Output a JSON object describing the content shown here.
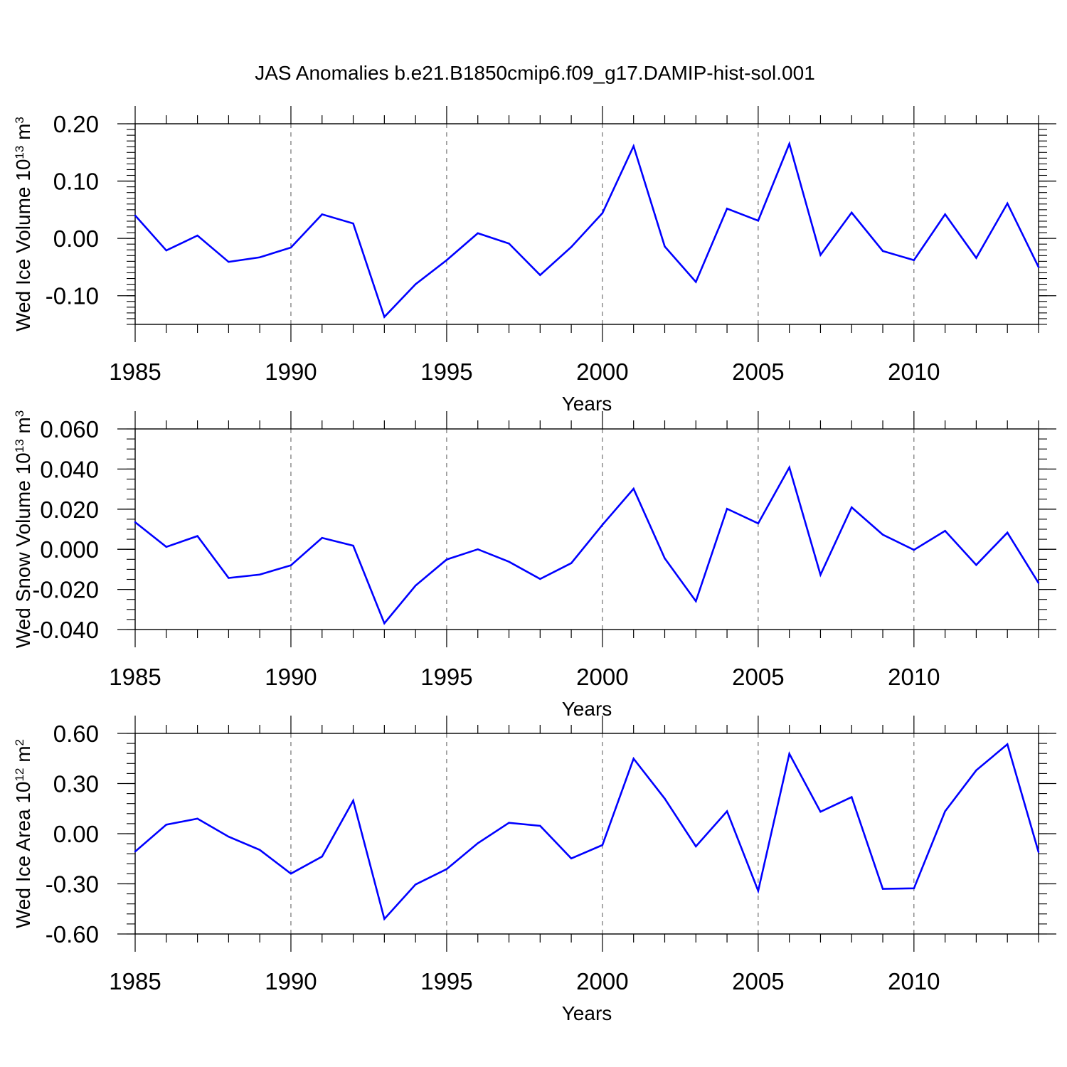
{
  "title": "JAS Anomalies b.e21.B1850cmip6.f09_g17.DAMIP-hist-sol.001",
  "series_color": "#0000ff",
  "chart_data": [
    {
      "type": "line",
      "ylabel": {
        "main": "Wed Ice Volume 10",
        "exp": "13",
        "unit": " m",
        "unit_exp": "3"
      },
      "xlabel": "Years",
      "xlim": [
        1985,
        2014
      ],
      "ylim": [
        -0.15,
        0.2
      ],
      "yticks": [
        0.2,
        0.1,
        0.0,
        -0.1
      ],
      "ytick_labels": [
        "0.20",
        "0.10",
        "0.00",
        "-0.10"
      ],
      "xticks": [
        1985,
        1990,
        1995,
        2000,
        2005,
        2010
      ],
      "xtick_labels": [
        "1985",
        "1990",
        "1995",
        "2000",
        "2005",
        "2010"
      ],
      "x": [
        1985,
        1986,
        1987,
        1988,
        1989,
        1990,
        1991,
        1992,
        1993,
        1994,
        1995,
        1996,
        1997,
        1998,
        1999,
        2000,
        2001,
        2002,
        2003,
        2004,
        2005,
        2006,
        2007,
        2008,
        2009,
        2010,
        2011,
        2012,
        2013,
        2014
      ],
      "values": [
        0.04,
        -0.021,
        0.005,
        -0.041,
        -0.033,
        -0.016,
        0.042,
        0.026,
        -0.137,
        -0.08,
        -0.038,
        0.009,
        -0.009,
        -0.064,
        -0.015,
        0.044,
        0.161,
        -0.014,
        -0.076,
        0.052,
        0.031,
        0.165,
        -0.029,
        0.045,
        -0.022,
        -0.038,
        0.042,
        -0.034,
        0.061,
        -0.05
      ]
    },
    {
      "type": "line",
      "ylabel": {
        "main": "Wed Snow Volume 10",
        "exp": "13",
        "unit": " m",
        "unit_exp": "3"
      },
      "xlabel": "Years",
      "xlim": [
        1985,
        2014
      ],
      "ylim": [
        -0.04,
        0.06
      ],
      "yticks": [
        0.06,
        0.04,
        0.02,
        0.0,
        -0.02,
        -0.04
      ],
      "ytick_labels": [
        "0.060",
        "0.040",
        "0.020",
        "0.000",
        "-0.020",
        "-0.040"
      ],
      "xticks": [
        1985,
        1990,
        1995,
        2000,
        2005,
        2010
      ],
      "xtick_labels": [
        "1985",
        "1990",
        "1995",
        "2000",
        "2005",
        "2010"
      ],
      "x": [
        1985,
        1986,
        1987,
        1988,
        1989,
        1990,
        1991,
        1992,
        1993,
        1994,
        1995,
        1996,
        1997,
        1998,
        1999,
        2000,
        2001,
        2002,
        2003,
        2004,
        2005,
        2006,
        2007,
        2008,
        2009,
        2010,
        2011,
        2012,
        2013,
        2014
      ],
      "values": [
        0.0135,
        0.0012,
        0.0066,
        -0.0143,
        -0.0126,
        -0.008,
        0.0057,
        0.0018,
        -0.0369,
        -0.0181,
        -0.0051,
        0.0,
        -0.0062,
        -0.0148,
        -0.0069,
        0.0122,
        0.0302,
        -0.0045,
        -0.0259,
        0.0202,
        0.0129,
        0.0408,
        -0.0127,
        0.0209,
        0.0073,
        -0.0003,
        0.0092,
        -0.0078,
        0.0083,
        -0.0168
      ]
    },
    {
      "type": "line",
      "ylabel": {
        "main": "Wed Ice Area 10",
        "exp": "12",
        "unit": " m",
        "unit_exp": "2"
      },
      "xlabel": "Years",
      "xlim": [
        1985,
        2014
      ],
      "ylim": [
        -0.6,
        0.6
      ],
      "yticks": [
        0.6,
        0.3,
        0.0,
        -0.3,
        -0.6
      ],
      "ytick_labels": [
        "0.60",
        "0.30",
        "0.00",
        "-0.30",
        "-0.60"
      ],
      "xticks": [
        1985,
        1990,
        1995,
        2000,
        2005,
        2010
      ],
      "xtick_labels": [
        "1985",
        "1990",
        "1995",
        "2000",
        "2005",
        "2010"
      ],
      "x": [
        1985,
        1986,
        1987,
        1988,
        1989,
        1990,
        1991,
        1992,
        1993,
        1994,
        1995,
        1996,
        1997,
        1998,
        1999,
        2000,
        2001,
        2002,
        2003,
        2004,
        2005,
        2006,
        2007,
        2008,
        2009,
        2010,
        2011,
        2012,
        2013,
        2014
      ],
      "values": [
        -0.107,
        0.054,
        0.09,
        -0.018,
        -0.097,
        -0.239,
        -0.137,
        0.198,
        -0.51,
        -0.304,
        -0.212,
        -0.057,
        0.065,
        0.047,
        -0.148,
        -0.068,
        0.449,
        0.21,
        -0.076,
        0.134,
        -0.342,
        0.478,
        0.131,
        0.219,
        -0.33,
        -0.327,
        0.134,
        0.379,
        0.535,
        -0.11
      ]
    }
  ]
}
